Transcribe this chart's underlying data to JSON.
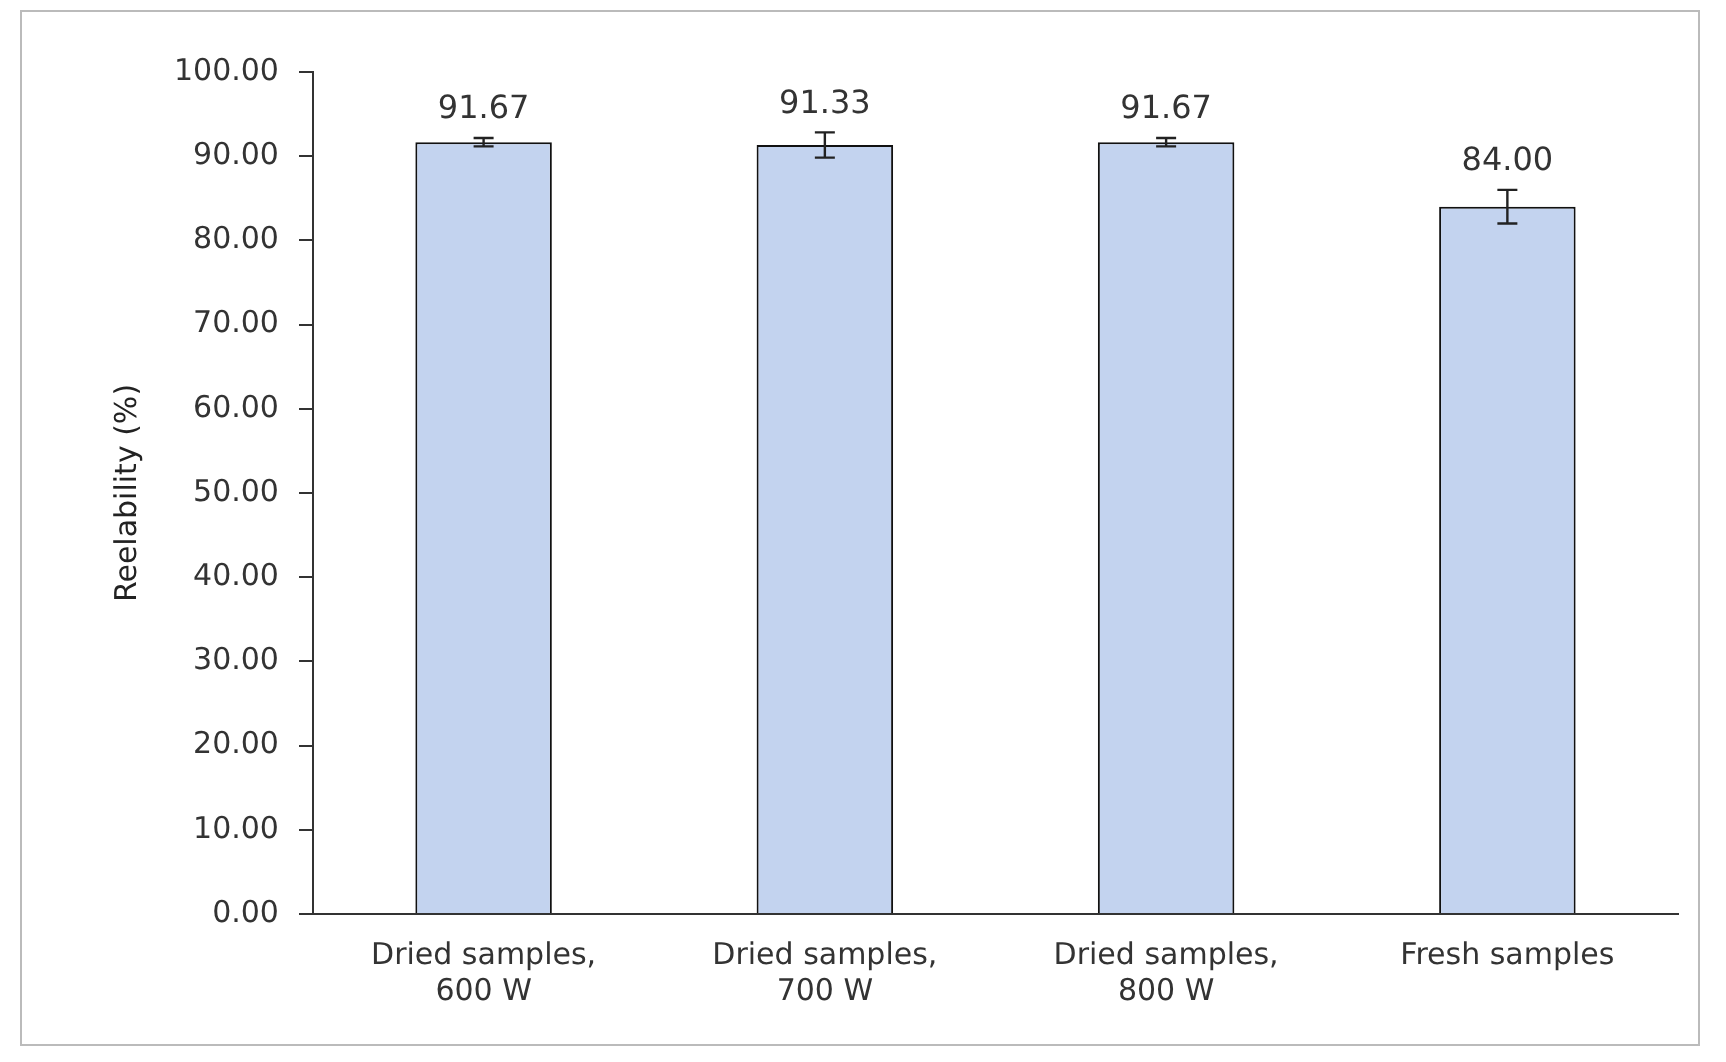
{
  "chart_data": {
    "type": "bar",
    "ylabel": "Reelability (%)",
    "categories": [
      "Dried samples, 600 W",
      "Dried samples, 700 W",
      "Dried samples, 800 W",
      "Fresh samples"
    ],
    "values": [
      91.67,
      91.33,
      91.67,
      84.0
    ],
    "errors": [
      0.5,
      1.5,
      0.5,
      2
    ],
    "value_labels": [
      "91.67",
      "91.33",
      "91.67",
      "84.00"
    ],
    "color": "#c3d3ef",
    "ylim": [
      0,
      100
    ],
    "yticks": [
      {
        "value": 0,
        "label": "0.00"
      },
      {
        "value": 10,
        "label": "10.00"
      },
      {
        "value": 20,
        "label": "20.00"
      },
      {
        "value": 30,
        "label": "30.00"
      },
      {
        "value": 40,
        "label": "40.00"
      },
      {
        "value": 50,
        "label": "50.00"
      },
      {
        "value": 60,
        "label": "60.00"
      },
      {
        "value": 70,
        "label": "70.00"
      },
      {
        "value": 80,
        "label": "80.00"
      },
      {
        "value": 90,
        "label": "90.00"
      },
      {
        "value": 100,
        "label": "100.00"
      }
    ],
    "grid": false,
    "legend": false
  }
}
